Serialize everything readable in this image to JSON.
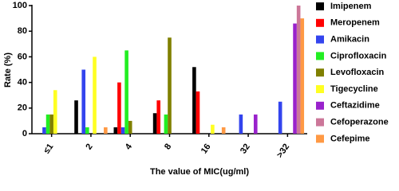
{
  "chart_data": {
    "type": "bar",
    "x_label": "The value of MIC(ug/ml)",
    "y_label": "Rate (%)",
    "categories": [
      "≤1",
      "2",
      "4",
      "8",
      "16",
      "32",
      ">32"
    ],
    "series": [
      {
        "name": "Imipenem",
        "color": "#000000",
        "values": [
          0,
          26,
          5,
          16,
          52,
          0,
          0
        ]
      },
      {
        "name": "Meropenem",
        "color": "#ff0000",
        "values": [
          0,
          0,
          40,
          26,
          33,
          0,
          0
        ]
      },
      {
        "name": "Amikacin",
        "color": "#3344ee",
        "values": [
          5,
          50,
          5,
          0,
          0,
          15,
          25
        ]
      },
      {
        "name": "Ciprofloxacin",
        "color": "#22ee22",
        "values": [
          15,
          5,
          65,
          15,
          0,
          0,
          0
        ]
      },
      {
        "name": "Levofloxacin",
        "color": "#808000",
        "values": [
          15,
          0,
          10,
          75,
          0,
          0,
          0
        ]
      },
      {
        "name": "Tigecycline",
        "color": "#ffff22",
        "values": [
          34,
          60,
          0,
          0,
          7,
          0,
          0
        ]
      },
      {
        "name": "Ceftazidime",
        "color": "#9922cc",
        "values": [
          0,
          0,
          0,
          0,
          0,
          15,
          86
        ]
      },
      {
        "name": "Cefoperazone",
        "color": "#cc7799",
        "values": [
          0,
          0,
          0,
          0,
          0,
          0,
          100
        ]
      },
      {
        "name": "Cefepime",
        "color": "#ff9944",
        "values": [
          0,
          5,
          0,
          0,
          5,
          0,
          90
        ]
      }
    ],
    "ylim": [
      0,
      100
    ],
    "yticks": [
      0,
      20,
      40,
      60,
      80,
      100
    ]
  }
}
